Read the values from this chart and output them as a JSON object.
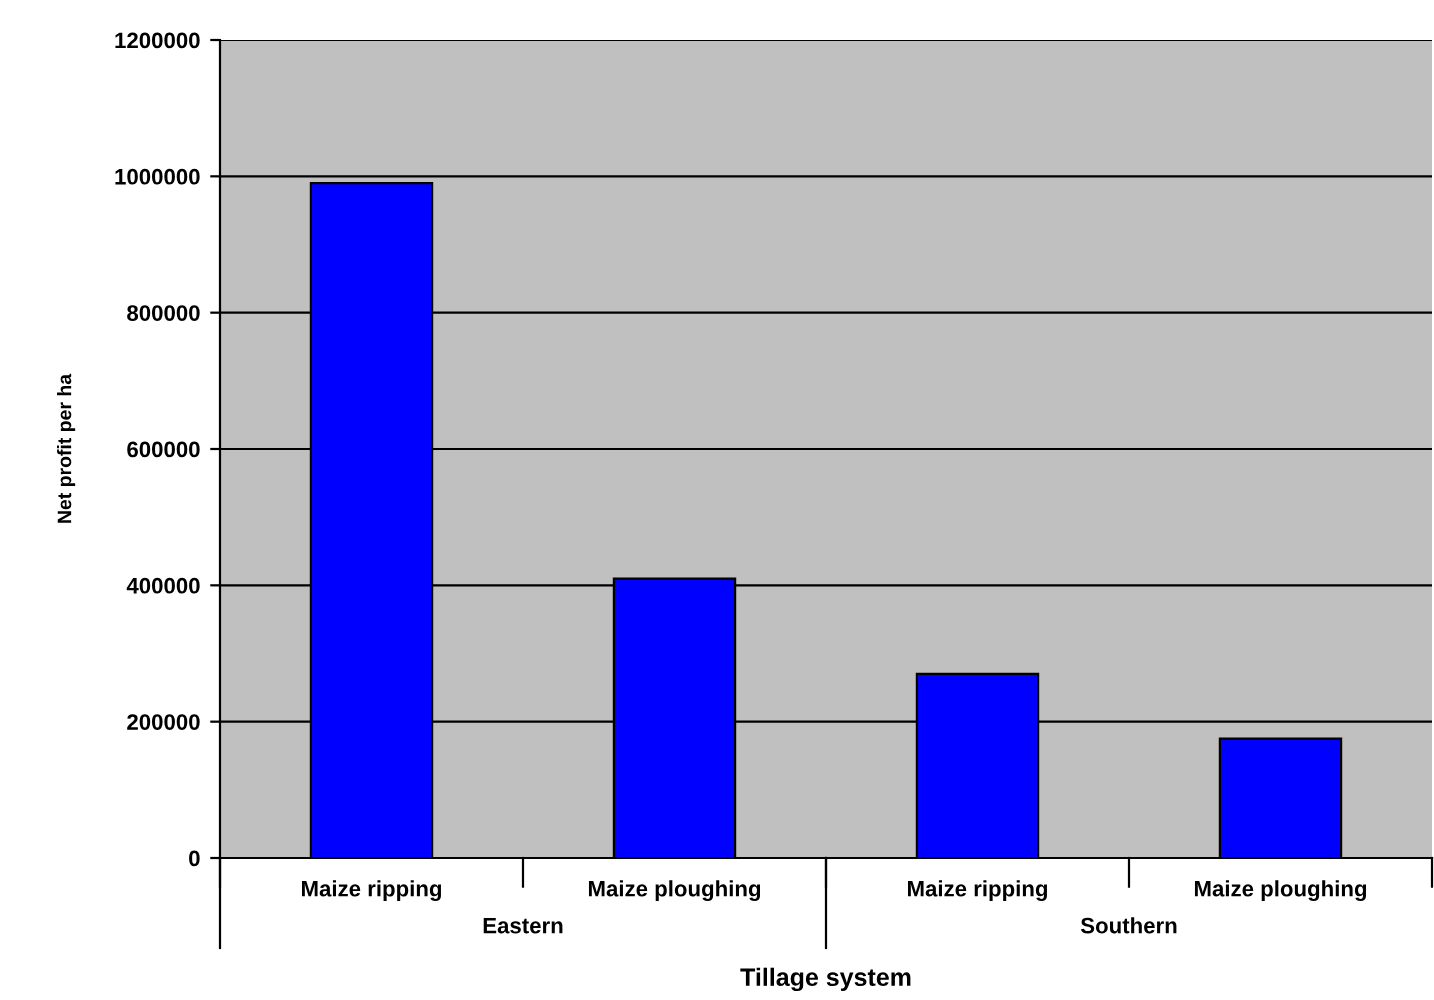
{
  "chart_data": {
    "type": "bar",
    "xlabel": "Tillage system",
    "ylabel": "Net profit per ha",
    "categories": [
      "Maize ripping",
      "Maize ploughing",
      "Maize ripping",
      "Maize ploughing"
    ],
    "values": [
      990000,
      410000,
      270000,
      175000
    ],
    "color": "#0000ff",
    "ylim": [
      0,
      1200000
    ],
    "yticks": [
      0,
      200000,
      400000,
      600000,
      800000,
      1000000,
      1200000
    ],
    "grid": "y",
    "annotations": [
      "Eastern",
      "Southern"
    ]
  }
}
